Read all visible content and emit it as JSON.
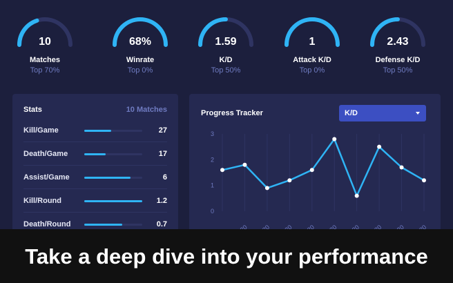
{
  "gauges": [
    {
      "value": "10",
      "label": "Matches",
      "sub": "Top 70%",
      "fill": 0.4
    },
    {
      "value": "68%",
      "label": "Winrate",
      "sub": "Top 0%",
      "fill": 1.0
    },
    {
      "value": "1.59",
      "label": "K/D",
      "sub": "Top 50%",
      "fill": 0.5
    },
    {
      "value": "1",
      "label": "Attack K/D",
      "sub": "Top 0%",
      "fill": 1.0
    },
    {
      "value": "2.43",
      "label": "Defense K/D",
      "sub": "Top 50%",
      "fill": 0.5
    }
  ],
  "stats": {
    "title": "Stats",
    "count": "10 Matches",
    "rows": [
      {
        "label": "Kill/Game",
        "value": "27",
        "bar": 0.47
      },
      {
        "label": "Death/Game",
        "value": "17",
        "bar": 0.37
      },
      {
        "label": "Assist/Game",
        "value": "6",
        "bar": 0.8
      },
      {
        "label": "Kill/Round",
        "value": "1.2",
        "bar": 1.0
      },
      {
        "label": "Death/Round",
        "value": "0.7",
        "bar": 0.65
      }
    ]
  },
  "tracker": {
    "title": "Progress Tracker",
    "selected": "K/D"
  },
  "chart_data": {
    "type": "line",
    "title": "",
    "xlabel": "",
    "ylabel": "",
    "y_ticks": [
      "0",
      "1",
      "2",
      "3"
    ],
    "ylim": [
      0,
      3
    ],
    "x": [
      "",
      "ay 20",
      "ay 20",
      "ay 20",
      "ay 20",
      "ay 20",
      "ay 20",
      "ay 20",
      "ay 20",
      "ay 20"
    ],
    "series": [
      {
        "values": [
          1.6,
          1.8,
          0.9,
          1.2,
          1.6,
          2.8,
          0.6,
          2.5,
          1.7,
          1.2
        ]
      }
    ],
    "grid": true
  },
  "banner": {
    "text": "Take a deep dive into your performance"
  },
  "colors": {
    "accent": "#2fb4f5",
    "background": "#1c1f3d",
    "panel": "#252951",
    "muted": "#6f7bc1",
    "select": "#3c4fc2"
  }
}
